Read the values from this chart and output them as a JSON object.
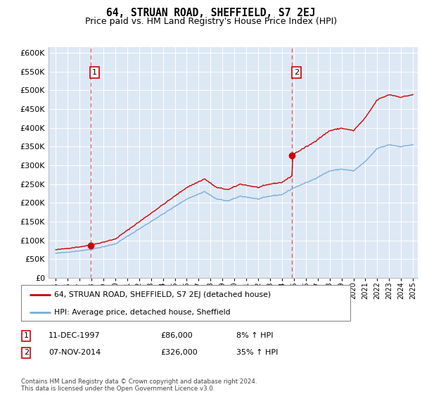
{
  "title": "64, STRUAN ROAD, SHEFFIELD, S7 2EJ",
  "subtitle": "Price paid vs. HM Land Registry's House Price Index (HPI)",
  "ytick_vals": [
    0,
    50000,
    100000,
    150000,
    200000,
    250000,
    300000,
    350000,
    400000,
    450000,
    500000,
    550000,
    600000
  ],
  "x_start_year": 1995,
  "x_end_year": 2025,
  "sale1_date": 1997.92,
  "sale1_price": 86000,
  "sale2_date": 2014.84,
  "sale2_price": 326000,
  "hpi_color": "#7aadda",
  "price_color": "#cc0000",
  "dashed_line_color": "#e06060",
  "background_color": "#dde8f5",
  "grid_color": "#ffffff",
  "legend_label_red": "64, STRUAN ROAD, SHEFFIELD, S7 2EJ (detached house)",
  "legend_label_blue": "HPI: Average price, detached house, Sheffield",
  "table_row1": [
    "1",
    "11-DEC-1997",
    "£86,000",
    "8% ↑ HPI"
  ],
  "table_row2": [
    "2",
    "07-NOV-2014",
    "£326,000",
    "35% ↑ HPI"
  ],
  "footer": "Contains HM Land Registry data © Crown copyright and database right 2024.\nThis data is licensed under the Open Government Licence v3.0.",
  "title_fontsize": 10.5,
  "subtitle_fontsize": 9
}
